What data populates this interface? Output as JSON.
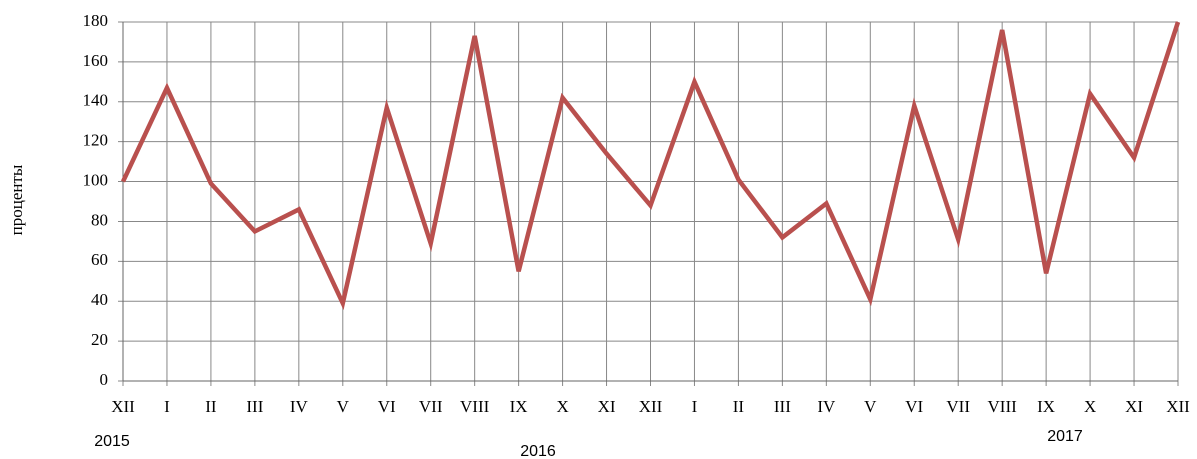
{
  "chart_data": {
    "type": "line",
    "y_label": "проценты",
    "categories": [
      "XII",
      "I",
      "II",
      "III",
      "IV",
      "V",
      "VI",
      "VII",
      "VIII",
      "IX",
      "X",
      "XI",
      "XII",
      "I",
      "II",
      "III",
      "IV",
      "V",
      "VI",
      "VII",
      "VIII",
      "IX",
      "X",
      "XI",
      "XII"
    ],
    "series": [
      {
        "name": "проценты",
        "color": "#b9504e",
        "values": [
          100,
          147,
          99,
          75,
          86,
          39,
          137,
          69,
          173,
          55,
          142,
          114,
          88,
          150,
          101,
          72,
          89,
          41,
          138,
          71,
          176,
          54,
          144,
          112,
          180
        ]
      }
    ],
    "ylim": [
      0,
      180
    ],
    "yticks": [
      0,
      20,
      40,
      60,
      80,
      100,
      120,
      140,
      160,
      180
    ],
    "grid": true,
    "year_labels": [
      "2015",
      "2016",
      "2017"
    ]
  }
}
